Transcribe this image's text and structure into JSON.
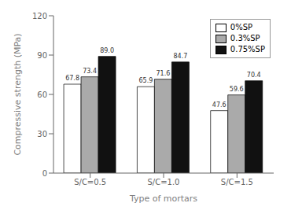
{
  "chart_data": {
    "type": "bar",
    "categories": [
      "S/C=0.5",
      "S/C=1.0",
      "S/C=1.5"
    ],
    "series": [
      {
        "name": "0%SP",
        "color": "white",
        "values": [
          67.8,
          65.9,
          47.6
        ]
      },
      {
        "name": "0.3%SP",
        "color": "#aaaaaa",
        "values": [
          73.4,
          71.6,
          59.6
        ]
      },
      {
        "name": "0.75%SP",
        "color": "#111111",
        "values": [
          89.0,
          84.7,
          70.4
        ],
        "value_labels": [
          "89.0",
          "84.7",
          "70.4"
        ]
      }
    ],
    "xlabel": "Type of mortars",
    "ylabel": "Compressive strength (MPa)",
    "ylim": [
      0,
      120
    ],
    "yticks": [
      0,
      30,
      60,
      90,
      120
    ],
    "legend": "upper right",
    "data_labels": true
  }
}
